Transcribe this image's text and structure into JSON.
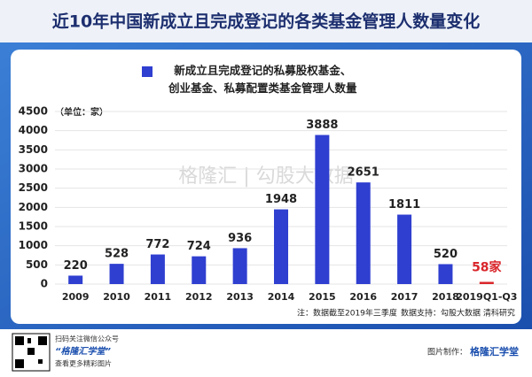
{
  "chart_data": {
    "type": "bar",
    "title": "近10年中国新成立且完成登记的各类基金管理人数量变化",
    "unit_label": "（单位：家）",
    "categories": [
      "2009",
      "2010",
      "2011",
      "2012",
      "2013",
      "2014",
      "2015",
      "2016",
      "2017",
      "2018",
      "2019Q1-Q3"
    ],
    "series": [
      {
        "name": "新成立且完成登记的私募股权基金、\n创业基金、私募配置类基金管理人数量",
        "color": "#2f3fd0",
        "values": [
          220,
          528,
          772,
          724,
          936,
          1948,
          3888,
          2651,
          1811,
          520,
          58
        ],
        "value_labels": [
          "220",
          "528",
          "772",
          "724",
          "936",
          "1948",
          "3888",
          "2651",
          "1811",
          "520",
          "58家"
        ],
        "colors": [
          "#2f3fd0",
          "#2f3fd0",
          "#2f3fd0",
          "#2f3fd0",
          "#2f3fd0",
          "#2f3fd0",
          "#2f3fd0",
          "#2f3fd0",
          "#2f3fd0",
          "#2f3fd0",
          "#d9262b"
        ]
      }
    ],
    "ylim": [
      0,
      4500
    ],
    "yticks": [
      0,
      500,
      1000,
      1500,
      2000,
      2500,
      3000,
      3500,
      4000,
      4500
    ],
    "grid": true,
    "note": "注：数据截至2019年三季度",
    "source": "数据支持：勾股大数据  清科研究",
    "watermark": "格隆汇 | 勾股大数据"
  },
  "footer": {
    "qr_caption": "扫码关注微信公众号",
    "account": "“格隆汇学堂”",
    "more": "查看更多精彩图片",
    "maker_label": "图片制作：",
    "maker": "格隆汇学堂"
  }
}
